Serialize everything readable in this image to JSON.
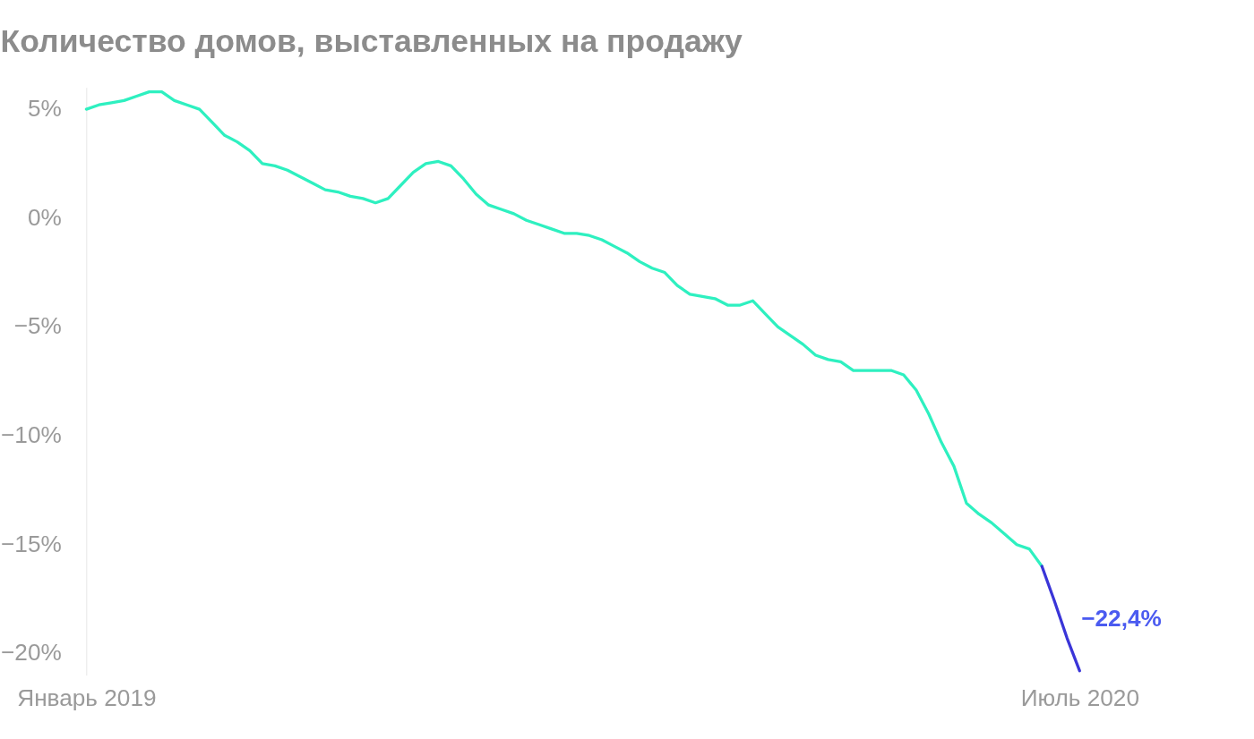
{
  "chart_data": {
    "type": "line",
    "title": "Количество домов, выставленных на продажу",
    "categories": [
      "Январь 2019",
      null,
      null,
      null,
      null,
      null,
      null,
      null,
      null,
      null,
      null,
      null,
      null,
      null,
      null,
      null,
      null,
      null,
      null,
      null,
      null,
      null,
      null,
      null,
      null,
      null,
      null,
      null,
      null,
      null,
      null,
      null,
      null,
      null,
      null,
      null,
      null,
      null,
      null,
      null,
      null,
      null,
      null,
      null,
      null,
      null,
      null,
      null,
      null,
      null,
      null,
      null,
      null,
      null,
      null,
      null,
      null,
      null,
      null,
      null,
      null,
      null,
      null,
      null,
      null,
      null,
      null,
      null,
      null,
      null,
      null,
      null,
      null,
      null,
      null,
      null,
      null,
      null,
      null,
      "Июль 2020"
    ],
    "ylim": [
      -21,
      6
    ],
    "yticks": [
      {
        "value": 5,
        "label": "5%"
      },
      {
        "value": 0,
        "label": "0%"
      },
      {
        "value": -5,
        "label": "−5%"
      },
      {
        "value": -10,
        "label": "−10%"
      },
      {
        "value": -15,
        "label": "−15%"
      },
      {
        "value": -20,
        "label": "−20%"
      }
    ],
    "grid": false,
    "marker": "none",
    "line_style": "solid",
    "series": [
      {
        "color": "#2ef0c0",
        "values": [
          5.0,
          5.2,
          5.3,
          5.4,
          5.6,
          5.8,
          5.8,
          5.4,
          5.2,
          5.0,
          4.4,
          3.8,
          3.5,
          3.1,
          2.5,
          2.4,
          2.2,
          1.9,
          1.6,
          1.3,
          1.2,
          1.0,
          0.9,
          0.7,
          0.9,
          1.5,
          2.1,
          2.5,
          2.6,
          2.4,
          1.8,
          1.1,
          0.6,
          0.4,
          0.2,
          -0.1,
          -0.3,
          -0.5,
          -0.7,
          -0.7,
          -0.8,
          -1.0,
          -1.3,
          -1.6,
          -2.0,
          -2.3,
          -2.5,
          -3.1,
          -3.5,
          -3.6,
          -3.7,
          -4.0,
          -4.0,
          -3.8,
          -4.4,
          -5.0,
          -5.4,
          -5.8,
          -6.3,
          -6.5,
          -6.6,
          -7.0,
          -7.0,
          -7.0,
          -7.0,
          -7.2,
          -7.9,
          -9.0,
          -10.3,
          -11.4,
          -13.1,
          -13.6,
          -14.0,
          -14.5,
          -15.0,
          -15.2,
          -16.0,
          null,
          null,
          null
        ]
      },
      {
        "color": "#3a35d8",
        "values": [
          null,
          null,
          null,
          null,
          null,
          null,
          null,
          null,
          null,
          null,
          null,
          null,
          null,
          null,
          null,
          null,
          null,
          null,
          null,
          null,
          null,
          null,
          null,
          null,
          null,
          null,
          null,
          null,
          null,
          null,
          null,
          null,
          null,
          null,
          null,
          null,
          null,
          null,
          null,
          null,
          null,
          null,
          null,
          null,
          null,
          null,
          null,
          null,
          null,
          null,
          null,
          null,
          null,
          null,
          null,
          null,
          null,
          null,
          null,
          null,
          null,
          null,
          null,
          null,
          null,
          null,
          null,
          null,
          null,
          null,
          null,
          null,
          null,
          null,
          null,
          null,
          -16.0,
          -17.6,
          -19.3,
          -20.8
        ]
      }
    ],
    "annotations": [
      "−22,4%"
    ]
  }
}
